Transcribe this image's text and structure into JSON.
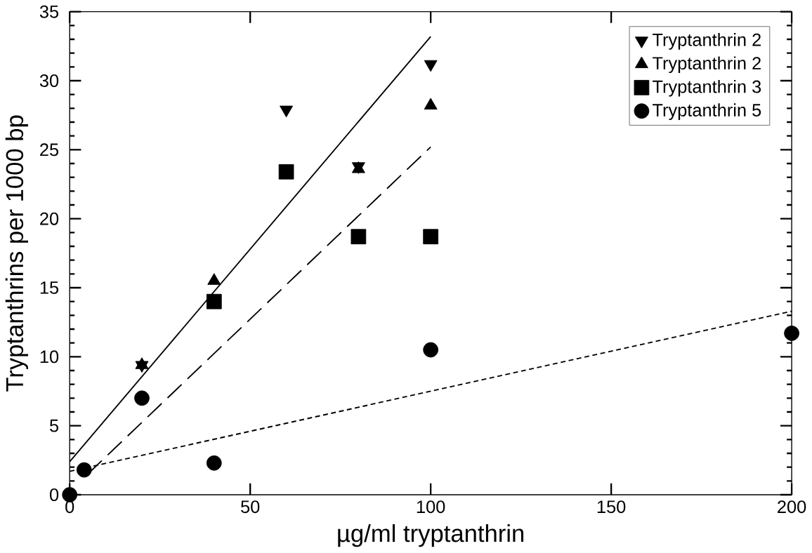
{
  "chart_data": {
    "type": "scatter",
    "xlabel": "µg/ml tryptanthrin",
    "ylabel": "Tryptanthrins per 1000 bp",
    "xlim": [
      0,
      200
    ],
    "ylim": [
      0,
      35
    ],
    "xticks": [
      0,
      50,
      100,
      150,
      200
    ],
    "yticks": [
      0,
      5,
      10,
      15,
      20,
      25,
      30,
      35
    ],
    "grid": false,
    "legend": "top right",
    "series": [
      {
        "name": "Tryptanthrin 2",
        "color": "#000000",
        "marker": "triangle-down",
        "x": [
          20,
          60,
          80,
          100
        ],
        "values": [
          9.4,
          27.9,
          23.8,
          31.2
        ]
      },
      {
        "name": "Tryptanthrin 2",
        "color": "#000000",
        "marker": "triangle",
        "x": [
          20,
          40,
          80,
          100
        ],
        "values": [
          9.4,
          15.5,
          23.6,
          28.2
        ]
      },
      {
        "name": "Tryptanthrin 3",
        "color": "#000000",
        "marker": "square",
        "x": [
          40,
          60,
          80,
          100
        ],
        "values": [
          14,
          23.4,
          18.7,
          18.7
        ]
      },
      {
        "name": "Tryptanthrin 5",
        "color": "#000000",
        "marker": "circle",
        "x": [
          0,
          4,
          20,
          40,
          100,
          200
        ],
        "values": [
          0,
          1.8,
          7,
          2.3,
          10.5,
          11.7
        ]
      },
      {
        "type": "line",
        "color": "#000000",
        "line_style": "solid",
        "x": [
          0,
          100
        ],
        "values": [
          2.4,
          33.2
        ]
      },
      {
        "type": "line",
        "color": "#000000",
        "line_style": "dashed",
        "x": [
          5,
          100
        ],
        "values": [
          1.5,
          25.2
        ]
      },
      {
        "type": "line",
        "color": "#000000",
        "line_style": "dotted",
        "x": [
          0,
          200
        ],
        "values": [
          1.7,
          13.3
        ]
      }
    ]
  }
}
